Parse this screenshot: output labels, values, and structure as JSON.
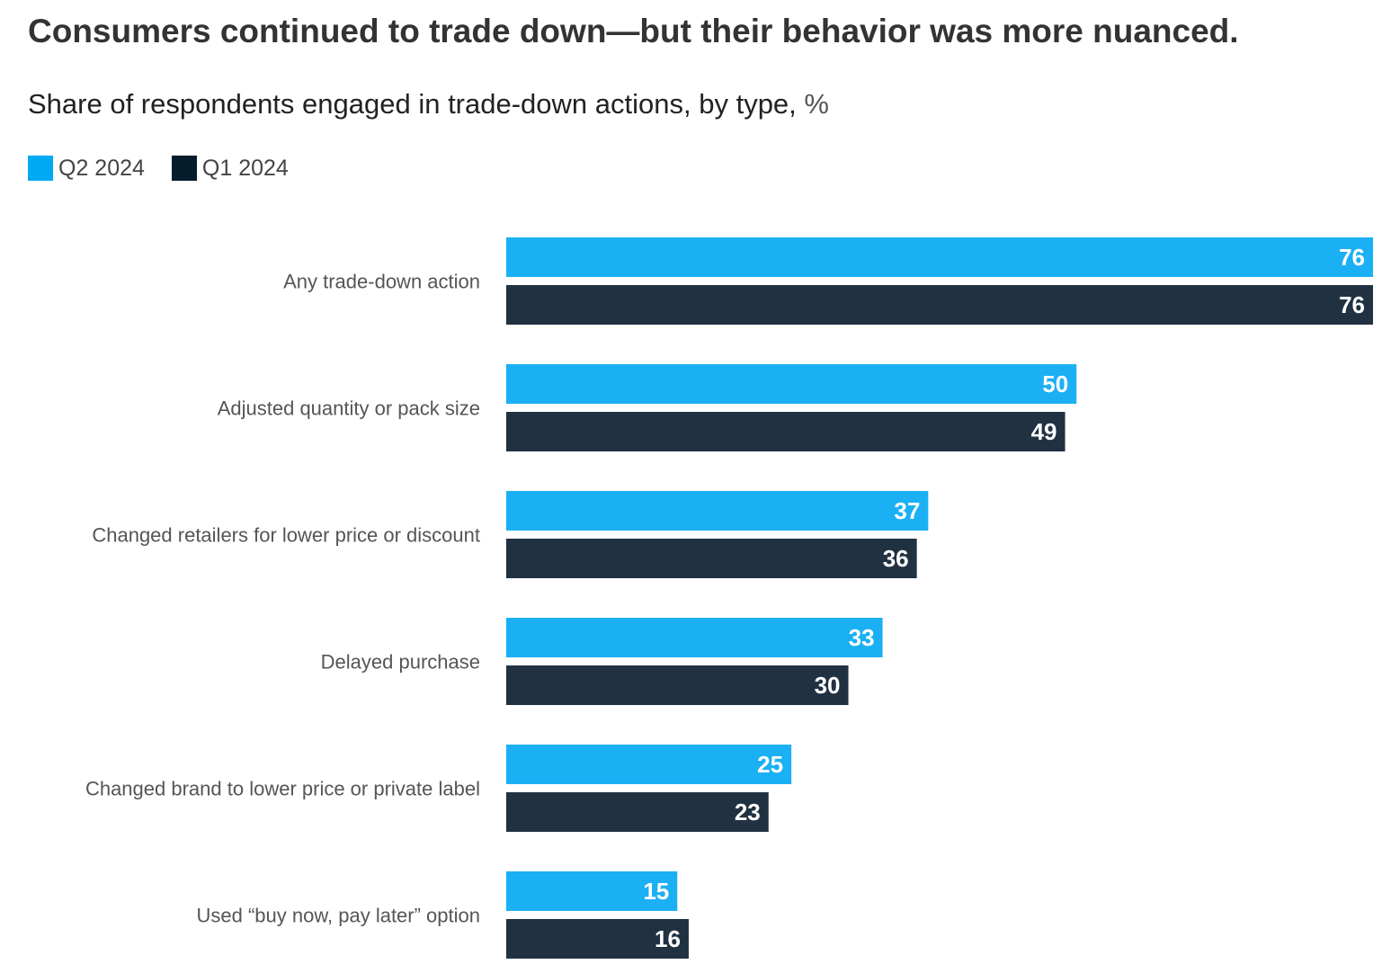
{
  "title": "Consumers continued to trade down—but their behavior was more nuanced.",
  "subtitle": "Share of respondents engaged in trade-down actions, by type,",
  "subtitle_unit": "%",
  "colors": {
    "q2": "#1BB0F4",
    "q1": "#203142"
  },
  "legend": [
    {
      "label": "Q2 2024",
      "color": "#00A9F4"
    },
    {
      "label": "Q1 2024",
      "color": "#051C2C"
    }
  ],
  "chart_data": {
    "type": "bar",
    "orientation": "horizontal",
    "title": "Consumers continued to trade down—but their behavior was more nuanced.",
    "subtitle": "Share of respondents engaged in trade-down actions, by type, %",
    "categories": [
      "Any trade-down action",
      "Adjusted quantity or pack size",
      "Changed retailers for lower price or discount",
      "Delayed purchase",
      "Changed brand to lower price or private label",
      "Used “buy now, pay later” option"
    ],
    "series": [
      {
        "name": "Q2 2024",
        "values": [
          76,
          50,
          37,
          33,
          25,
          15
        ]
      },
      {
        "name": "Q1 2024",
        "values": [
          76,
          49,
          36,
          30,
          23,
          16
        ]
      }
    ],
    "xlim": [
      0,
      76
    ],
    "xlabel": "",
    "ylabel": "",
    "grid": false,
    "legend_position": "top-left"
  }
}
